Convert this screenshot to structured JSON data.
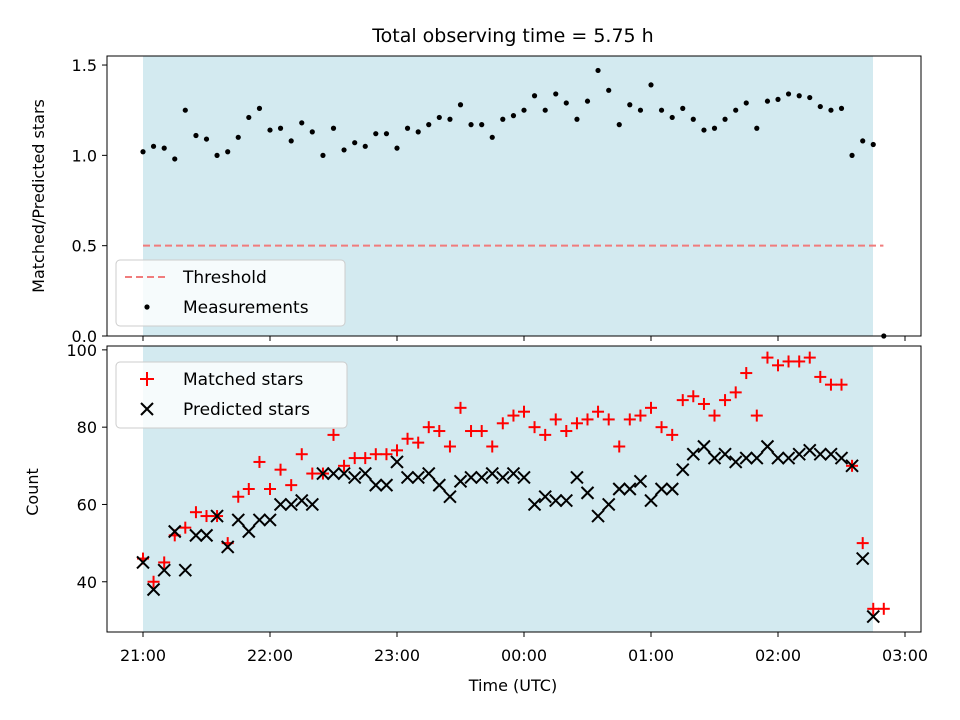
{
  "chart_data": [
    {
      "type": "scatter",
      "title": "Total observing time = 5.75 h",
      "xlabel": "",
      "ylabel": "Matched/Predicted stars",
      "ylim": [
        0,
        1.55
      ],
      "yticks": [
        "0.0",
        "0.5",
        "1.0",
        "1.5"
      ],
      "shaded_region": {
        "x_start_hours_after_21": 0.0,
        "x_end_hours_after_21": 5.75,
        "color": "#d3eaf0"
      },
      "legend_position": "lower-left",
      "series": [
        {
          "name": "Threshold",
          "style": "dashed-line",
          "color": "#f07c7c",
          "x_hours_after_21": [
            0.0,
            5.83
          ],
          "values": [
            0.5,
            0.5
          ]
        },
        {
          "name": "Measurements",
          "style": "dot",
          "color": "#000000",
          "x_hours_after_21": [
            0.0,
            0.083,
            0.167,
            0.25,
            0.333,
            0.417,
            0.5,
            0.583,
            0.667,
            0.75,
            0.833,
            0.917,
            1.0,
            1.083,
            1.167,
            1.25,
            1.333,
            1.417,
            1.5,
            1.583,
            1.667,
            1.75,
            1.833,
            1.917,
            2.0,
            2.083,
            2.167,
            2.25,
            2.333,
            2.417,
            2.5,
            2.583,
            2.667,
            2.75,
            2.833,
            2.917,
            3.0,
            3.083,
            3.167,
            3.25,
            3.333,
            3.417,
            3.5,
            3.583,
            3.667,
            3.75,
            3.833,
            3.917,
            4.0,
            4.083,
            4.167,
            4.25,
            4.333,
            4.417,
            4.5,
            4.583,
            4.667,
            4.75,
            4.833,
            4.917,
            5.0,
            5.083,
            5.167,
            5.25,
            5.333,
            5.417,
            5.5,
            5.583,
            5.667,
            5.75,
            5.833
          ],
          "values": [
            1.02,
            1.05,
            1.04,
            0.98,
            1.25,
            1.11,
            1.09,
            1.0,
            1.02,
            1.1,
            1.21,
            1.26,
            1.14,
            1.15,
            1.08,
            1.18,
            1.13,
            1.0,
            1.15,
            1.03,
            1.07,
            1.05,
            1.12,
            1.12,
            1.04,
            1.15,
            1.13,
            1.17,
            1.21,
            1.2,
            1.28,
            1.17,
            1.17,
            1.1,
            1.2,
            1.22,
            1.25,
            1.33,
            1.25,
            1.34,
            1.29,
            1.2,
            1.3,
            1.47,
            1.36,
            1.17,
            1.28,
            1.25,
            1.39,
            1.25,
            1.21,
            1.26,
            1.2,
            1.14,
            1.15,
            1.2,
            1.25,
            1.29,
            1.15,
            1.3,
            1.31,
            1.34,
            1.33,
            1.32,
            1.27,
            1.25,
            1.26,
            1.0,
            1.08,
            1.06,
            0.0
          ]
        }
      ]
    },
    {
      "type": "scatter",
      "title": "",
      "xlabel": "Time (UTC)",
      "ylabel": "Count",
      "ylim": [
        27,
        101
      ],
      "yticks": [
        "40",
        "60",
        "80",
        "100"
      ],
      "x_tick_labels": [
        "21:00",
        "22:00",
        "23:00",
        "00:00",
        "01:00",
        "02:00",
        "03:00"
      ],
      "shaded_region": {
        "x_start_hours_after_21": 0.0,
        "x_end_hours_after_21": 5.75,
        "color": "#d3eaf0"
      },
      "legend_position": "top-left",
      "series": [
        {
          "name": "Matched stars",
          "style": "plus",
          "color": "#ff0000",
          "x_hours_after_21": [
            0.0,
            0.083,
            0.167,
            0.25,
            0.333,
            0.417,
            0.5,
            0.583,
            0.667,
            0.75,
            0.833,
            0.917,
            1.0,
            1.083,
            1.167,
            1.25,
            1.333,
            1.417,
            1.5,
            1.583,
            1.667,
            1.75,
            1.833,
            1.917,
            2.0,
            2.083,
            2.167,
            2.25,
            2.333,
            2.417,
            2.5,
            2.583,
            2.667,
            2.75,
            2.833,
            2.917,
            3.0,
            3.083,
            3.167,
            3.25,
            3.333,
            3.417,
            3.5,
            3.583,
            3.667,
            3.75,
            3.833,
            3.917,
            4.0,
            4.083,
            4.167,
            4.25,
            4.333,
            4.417,
            4.5,
            4.583,
            4.667,
            4.75,
            4.833,
            4.917,
            5.0,
            5.083,
            5.167,
            5.25,
            5.333,
            5.417,
            5.5,
            5.583,
            5.667,
            5.75,
            5.833
          ],
          "values": [
            46,
            40,
            45,
            52,
            54,
            58,
            57,
            57,
            50,
            62,
            64,
            71,
            64,
            69,
            65,
            73,
            68,
            68,
            78,
            70,
            72,
            72,
            73,
            73,
            74,
            77,
            76,
            80,
            79,
            75,
            85,
            79,
            79,
            75,
            81,
            83,
            84,
            80,
            78,
            82,
            79,
            81,
            82,
            84,
            82,
            75,
            82,
            83,
            85,
            80,
            78,
            87,
            88,
            86,
            83,
            87,
            89,
            94,
            83,
            98,
            96,
            97,
            97,
            98,
            93,
            91,
            91,
            70,
            50,
            33,
            33
          ]
        },
        {
          "name": "Predicted stars",
          "style": "x",
          "color": "#000000",
          "x_hours_after_21": [
            0.0,
            0.083,
            0.167,
            0.25,
            0.333,
            0.417,
            0.5,
            0.583,
            0.667,
            0.75,
            0.833,
            0.917,
            1.0,
            1.083,
            1.167,
            1.25,
            1.333,
            1.417,
            1.5,
            1.583,
            1.667,
            1.75,
            1.833,
            1.917,
            2.0,
            2.083,
            2.167,
            2.25,
            2.333,
            2.417,
            2.5,
            2.583,
            2.667,
            2.75,
            2.833,
            2.917,
            3.0,
            3.083,
            3.167,
            3.25,
            3.333,
            3.417,
            3.5,
            3.583,
            3.667,
            3.75,
            3.833,
            3.917,
            4.0,
            4.083,
            4.167,
            4.25,
            4.333,
            4.417,
            4.5,
            4.583,
            4.667,
            4.75,
            4.833,
            4.917,
            5.0,
            5.083,
            5.167,
            5.25,
            5.333,
            5.417,
            5.5,
            5.583,
            5.667,
            5.75
          ],
          "values": [
            45,
            38,
            43,
            53,
            43,
            52,
            52,
            57,
            49,
            56,
            53,
            56,
            56,
            60,
            60,
            61,
            60,
            68,
            68,
            68,
            67,
            68,
            65,
            65,
            71,
            67,
            67,
            68,
            65,
            62,
            66,
            67,
            67,
            68,
            67,
            68,
            67,
            60,
            62,
            61,
            61,
            67,
            63,
            57,
            60,
            64,
            64,
            66,
            61,
            64,
            64,
            69,
            73,
            75,
            72,
            73,
            71,
            72,
            72,
            75,
            72,
            72,
            73,
            74,
            73,
            73,
            72,
            70,
            46,
            31
          ]
        }
      ]
    }
  ]
}
